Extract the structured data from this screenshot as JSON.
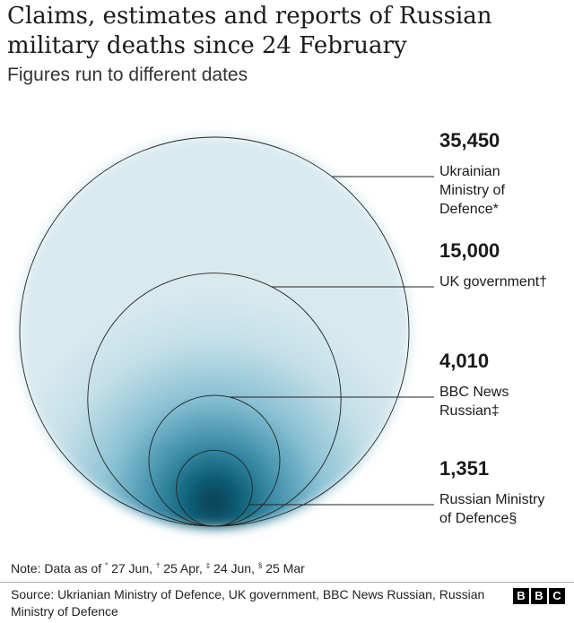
{
  "title": "Claims, estimates and reports of Russian military deaths since 24 February",
  "subtitle": "Figures run to different dates",
  "chart_data": {
    "type": "bubble",
    "title": "Claims, estimates and reports of Russian military deaths since 24 February",
    "subtitle": "Figures run to different dates",
    "items": [
      {
        "value": 35450,
        "value_label": "35,450",
        "label_lines": [
          "Ukrainian",
          "Ministry of",
          "Defence*"
        ]
      },
      {
        "value": 15000,
        "value_label": "15,000",
        "label_lines": [
          "UK government†"
        ]
      },
      {
        "value": 4010,
        "value_label": "4,010",
        "label_lines": [
          "BBC News",
          "Russian‡"
        ]
      },
      {
        "value": 1351,
        "value_label": "1,351",
        "label_lines": [
          "Russian Ministry",
          "of Defence§"
        ]
      }
    ]
  },
  "note": {
    "prefix": "Note: Data as of ",
    "parts": [
      {
        "mark": "*",
        "text": " 27 Jun, "
      },
      {
        "mark": "†",
        "text": " 25 Apr, "
      },
      {
        "mark": "‡",
        "text": " 24 Jun, "
      },
      {
        "mark": "§",
        "text": " 25 Mar"
      }
    ]
  },
  "source": "Source: Ukrianian Ministry of Defence, UK government, BBC News Russian, Russian Ministry of Defence",
  "logo_letters": [
    "B",
    "B",
    "C"
  ],
  "colors": {
    "circle_fill": "#d4e6ec",
    "gradient_mid": "#5ea9c1",
    "gradient_dark": "#0e5f78",
    "gradient_core": "#0a3d4f",
    "line": "#222222"
  }
}
